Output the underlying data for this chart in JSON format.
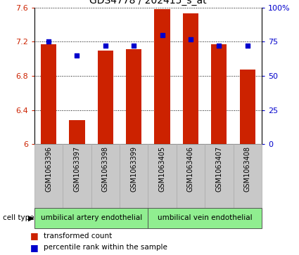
{
  "title": "GDS4778 / 202415_s_at",
  "samples": [
    "GSM1063396",
    "GSM1063397",
    "GSM1063398",
    "GSM1063399",
    "GSM1063405",
    "GSM1063406",
    "GSM1063407",
    "GSM1063408"
  ],
  "bar_values": [
    7.17,
    6.28,
    7.1,
    7.11,
    7.58,
    7.53,
    7.17,
    6.87
  ],
  "percentile_values": [
    75,
    65,
    72,
    72,
    80,
    77,
    72,
    72
  ],
  "bar_color": "#cc2200",
  "dot_color": "#0000cc",
  "ylim_left": [
    6.0,
    7.6
  ],
  "ylim_right": [
    0,
    100
  ],
  "yticks_left": [
    6.0,
    6.4,
    6.8,
    7.2,
    7.6
  ],
  "ytick_labels_left": [
    "6",
    "6.4",
    "6.8",
    "7.2",
    "7.6"
  ],
  "ytick_labels_right": [
    "0",
    "25",
    "50",
    "75",
    "100%"
  ],
  "group1_label": "umbilical artery endothelial",
  "group2_label": "umbilical vein endothelial",
  "cell_type_label": "cell type",
  "legend1": "transformed count",
  "legend2": "percentile rank within the sample",
  "bar_color_legend": "#cc2200",
  "dot_color_legend": "#0000cc",
  "bg_xticklabels": "#c8c8c8",
  "bg_group": "#90ee90",
  "bar_bottom": 6.0,
  "group1_count": 4,
  "group2_count": 4,
  "bar_width": 0.55
}
